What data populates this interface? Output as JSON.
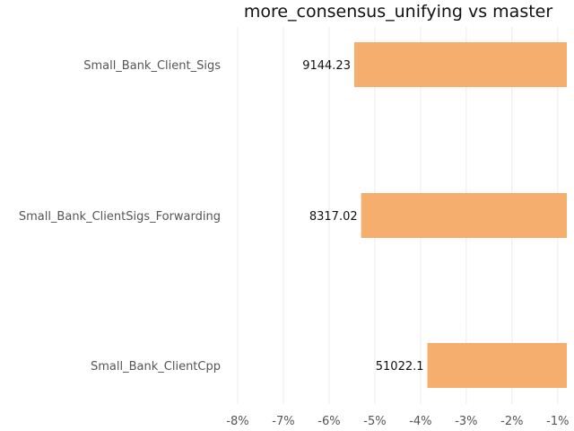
{
  "chart_data": {
    "type": "bar",
    "orientation": "horizontal",
    "title": "more_consensus_unifying vs master",
    "categories": [
      "Small_Bank_Client_Sigs",
      "Small_Bank_ClientSigs_Forwarding",
      "Small_Bank_ClientCpp"
    ],
    "values": [
      -5.45,
      -5.3,
      -3.85
    ],
    "data_labels": [
      "9144.23",
      "8317.02",
      "51022.1"
    ],
    "x_ticks": [
      "-8%",
      "-7%",
      "-6%",
      "-5%",
      "-4%",
      "-3%",
      "-2%",
      "-1%"
    ],
    "x_tick_values": [
      -8,
      -7,
      -6,
      -5,
      -4,
      -3,
      -2,
      -1
    ],
    "xlim": [
      -8.0,
      -0.8
    ],
    "grid": true,
    "bar_color": "#f5ae6e"
  }
}
